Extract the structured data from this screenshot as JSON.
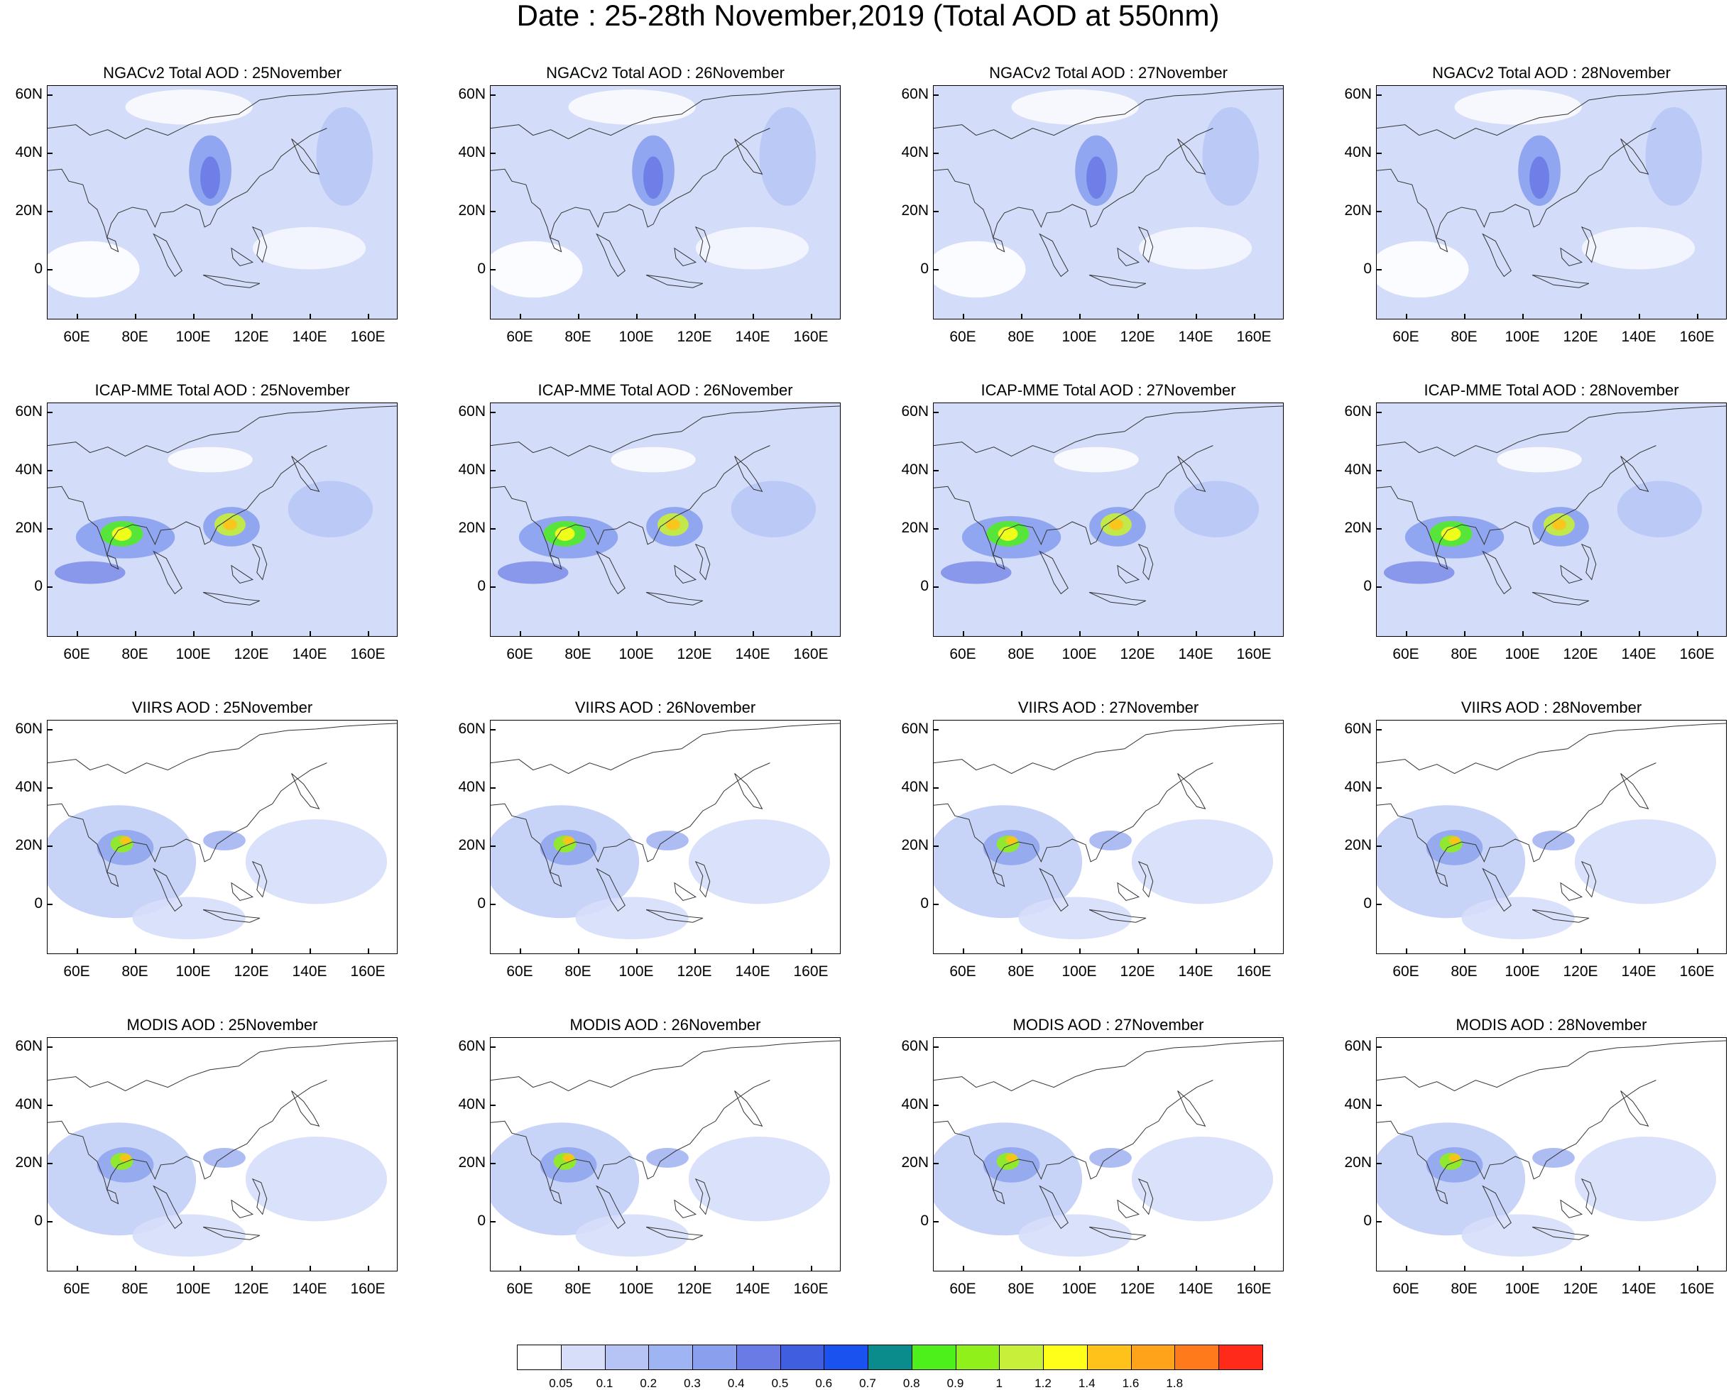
{
  "title": "Date : 25-28th November,2019 (Total AOD at 550nm)",
  "lat_labels": [
    "60N",
    "40N",
    "20N",
    "0"
  ],
  "lon_labels": [
    "60E",
    "80E",
    "100E",
    "120E",
    "140E",
    "160E"
  ],
  "panels": [
    {
      "title": "NGACv2 Total AOD : 25November",
      "field": "ngac"
    },
    {
      "title": "NGACv2 Total AOD : 26November",
      "field": "ngac"
    },
    {
      "title": "NGACv2 Total AOD : 27November",
      "field": "ngac"
    },
    {
      "title": "NGACv2 Total AOD : 28November",
      "field": "ngac"
    },
    {
      "title": "ICAP-MME Total AOD : 25November",
      "field": "icap"
    },
    {
      "title": "ICAP-MME Total AOD : 26November",
      "field": "icap"
    },
    {
      "title": "ICAP-MME Total AOD : 27November",
      "field": "icap"
    },
    {
      "title": "ICAP-MME Total AOD : 28November",
      "field": "icap"
    },
    {
      "title": "VIIRS AOD : 25November",
      "field": "sat"
    },
    {
      "title": "VIIRS AOD : 26November",
      "field": "sat"
    },
    {
      "title": "VIIRS AOD : 27November",
      "field": "sat"
    },
    {
      "title": "VIIRS AOD : 28November",
      "field": "sat"
    },
    {
      "title": "MODIS AOD : 25November",
      "field": "sat"
    },
    {
      "title": "MODIS AOD : 26November",
      "field": "sat"
    },
    {
      "title": "MODIS AOD : 27November",
      "field": "sat"
    },
    {
      "title": "MODIS AOD : 28November",
      "field": "sat"
    }
  ],
  "colorbar": {
    "colors": [
      "#ffffff",
      "#d6def9",
      "#b5c4f5",
      "#9fb4f2",
      "#8aa0ee",
      "#6b7be6",
      "#3f5fe0",
      "#1a52f0",
      "#0a8c8c",
      "#4df01a",
      "#8ff01a",
      "#c8f03a",
      "#ffff1a",
      "#ffc21a",
      "#ffa31a",
      "#ff7a1a",
      "#ff2a1a"
    ],
    "labels": [
      "0.05",
      "0.1",
      "0.2",
      "0.3",
      "0.4",
      "0.5",
      "0.6",
      "0.7",
      "0.8",
      "0.9",
      "1",
      "1.2",
      "1.4",
      "1.6",
      "1.8"
    ]
  }
}
